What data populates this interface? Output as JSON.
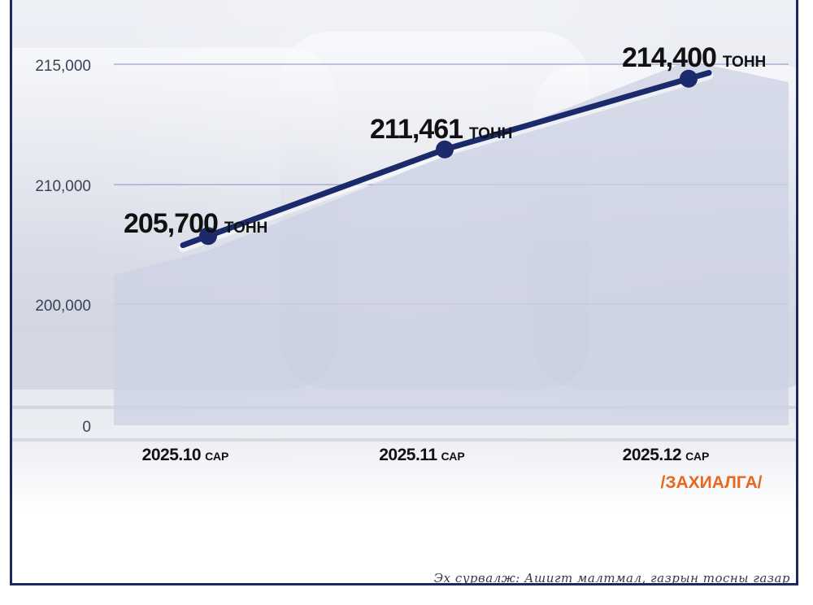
{
  "chart_data": {
    "type": "area",
    "categories": [
      "2025.10",
      "2025.11",
      "2025.12"
    ],
    "category_suffix": "САР",
    "values": [
      205700,
      211461,
      214400
    ],
    "value_labels": [
      "205,700",
      "211,461",
      "214,400"
    ],
    "value_unit": "тонн",
    "yticks": [
      "0",
      "200,000",
      "210,000",
      "215,000"
    ],
    "note": "/ЗАХИАЛГА/",
    "source": "Эх сурвалж: Ашигт малтмал, газрын тосны газар",
    "colors": {
      "line": "#1b2a6b",
      "area": "#cdd2e4",
      "grid": "#9aa3c8",
      "note": "#e8661e",
      "text": "#111111"
    }
  }
}
